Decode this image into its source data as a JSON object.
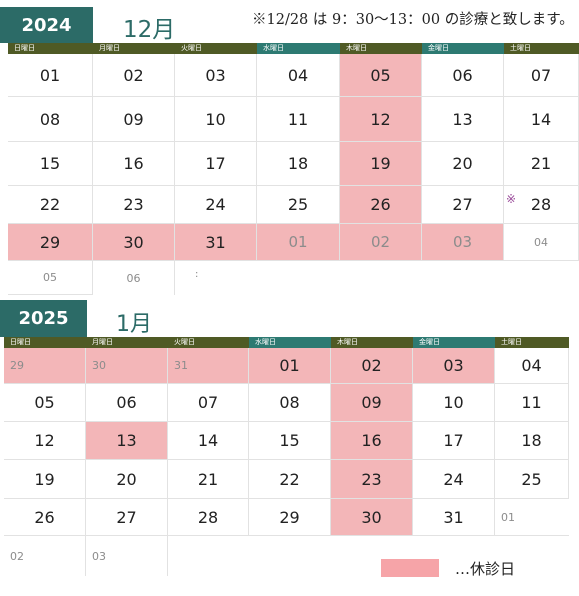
{
  "note": "※12/28 は 9：30～13：00 の診療と致します。",
  "weekdays": [
    "日曜日",
    "月曜日",
    "火曜日",
    "水曜日",
    "木曜日",
    "金曜日",
    "土曜日"
  ],
  "colors": {
    "closed": "#f3b6b8",
    "accent": "#2c6b67",
    "header_olive": "#4f5a25",
    "header_teal": "#2d7a72",
    "legend": "#f6a4a8"
  },
  "december": {
    "year": "2024",
    "month": "12月",
    "weeks": [
      [
        "01",
        "02",
        "03",
        "04",
        "05",
        "06",
        "07"
      ],
      [
        "08",
        "09",
        "10",
        "11",
        "12",
        "13",
        "14"
      ],
      [
        "15",
        "16",
        "17",
        "18",
        "19",
        "20",
        "21"
      ],
      [
        "22",
        "23",
        "24",
        "25",
        "26",
        "27",
        "28"
      ],
      [
        "29",
        "30",
        "31",
        "01",
        "02",
        "03",
        "04"
      ],
      [
        "05",
        "06"
      ]
    ],
    "mark": "※",
    "colon_glyph": ":"
  },
  "january": {
    "year": "2025",
    "month": "1月",
    "weeks": [
      [
        "29",
        "30",
        "31",
        "01",
        "02",
        "03",
        "04"
      ],
      [
        "05",
        "06",
        "07",
        "08",
        "09",
        "10",
        "11"
      ],
      [
        "12",
        "13",
        "14",
        "15",
        "16",
        "17",
        "18"
      ],
      [
        "19",
        "20",
        "21",
        "22",
        "23",
        "24",
        "25"
      ],
      [
        "26",
        "27",
        "28",
        "29",
        "30",
        "31",
        "01"
      ],
      [
        "02",
        "03"
      ]
    ]
  },
  "legend": {
    "label": "…休診日"
  }
}
